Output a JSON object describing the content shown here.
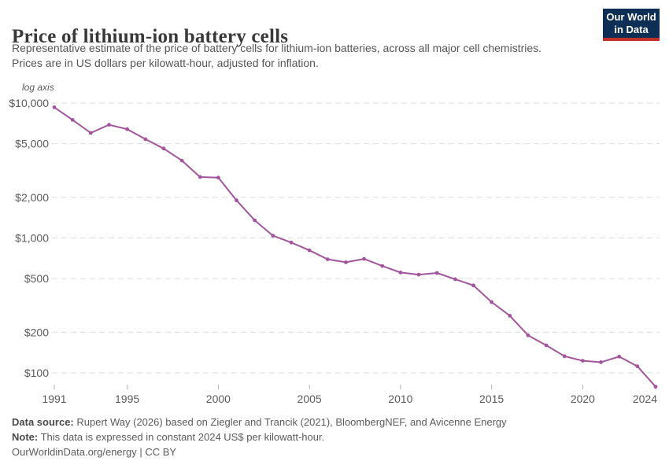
{
  "header": {
    "title": "Price of lithium-ion battery cells",
    "subtitle": {
      "line1": "Representative estimate of the price of battery cells for lithium-ion batteries, across all major cell chemistries.",
      "line2": "Prices are in US dollars per kilowatt-hour, adjusted for inflation."
    },
    "logo": {
      "line1": "Our World",
      "line2": "in Data",
      "bg_color": "#0d2e55",
      "accent_color": "#c0302b"
    }
  },
  "chart_data": {
    "type": "line",
    "title": "Price of lithium-ion battery cells",
    "axis_note": "log axis",
    "y_scale": "log",
    "grid": true,
    "line_color": "#a2559c",
    "gridline_color": "#dddddd",
    "tick_color": "#b3b3b3",
    "ylim": [
      100,
      10000
    ],
    "xlim": [
      1991,
      2024
    ],
    "y_ticks": [
      {
        "value": 10000,
        "label": "$10,000"
      },
      {
        "value": 5000,
        "label": "$5,000"
      },
      {
        "value": 2000,
        "label": "$2,000"
      },
      {
        "value": 1000,
        "label": "$1,000"
      },
      {
        "value": 500,
        "label": "$500"
      },
      {
        "value": 200,
        "label": "$200"
      },
      {
        "value": 100,
        "label": "$100"
      }
    ],
    "x_ticks": [
      1991,
      1995,
      2000,
      2005,
      2010,
      2015,
      2020,
      2024
    ],
    "x": [
      1991,
      1992,
      1993,
      1994,
      1995,
      1996,
      1997,
      1998,
      1999,
      2000,
      2001,
      2002,
      2003,
      2004,
      2005,
      2006,
      2007,
      2008,
      2009,
      2010,
      2011,
      2012,
      2013,
      2014,
      2015,
      2016,
      2017,
      2018,
      2019,
      2020,
      2021,
      2022,
      2023,
      2024
    ],
    "values": [
      9300,
      7500,
      6000,
      6900,
      6400,
      5400,
      4600,
      3750,
      2830,
      2800,
      1900,
      1350,
      1040,
      925,
      810,
      695,
      660,
      700,
      620,
      555,
      535,
      550,
      495,
      445,
      335,
      265,
      190,
      160,
      133,
      123,
      120,
      132,
      112,
      79
    ]
  },
  "footer": {
    "source_label": "Data source:",
    "source_text": " Rupert Way (2026) based on Ziegler and Trancik (2021), BloombergNEF, and Avicenne Energy",
    "note_label": "Note:",
    "note_text": " This data is expressed in constant 2024 US$ per kilowatt-hour.",
    "license": "OurWorldinData.org/energy | CC BY"
  }
}
